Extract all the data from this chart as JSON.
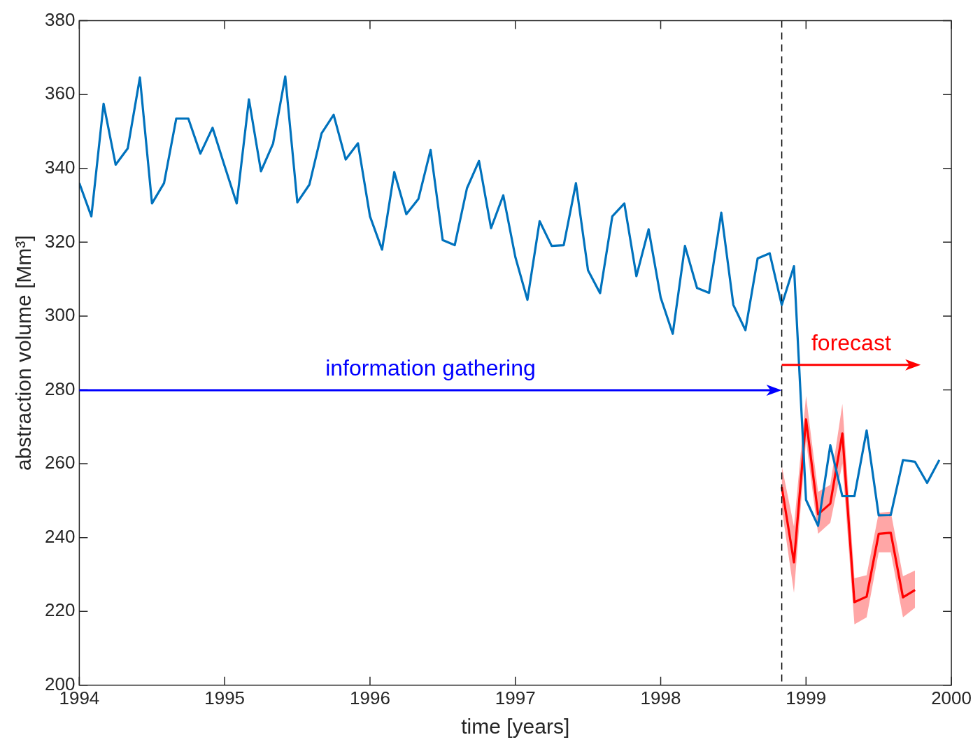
{
  "chart_data": {
    "type": "line",
    "xlabel": "time [years]",
    "ylabel": "abstraction volume [Mm³]",
    "xlim": [
      1994,
      2000
    ],
    "xticks": [
      1994,
      1995,
      1996,
      1997,
      1998,
      1999,
      2000
    ],
    "ylim": [
      200,
      380
    ],
    "yticks": [
      200,
      220,
      240,
      260,
      280,
      300,
      320,
      340,
      360,
      380
    ],
    "grid": false,
    "legend": false,
    "marker": "none",
    "line_style": "solid",
    "series": [
      {
        "color": "#0072bd",
        "x": [
          1994,
          1994.083,
          1994.167,
          1994.25,
          1994.333,
          1994.417,
          1994.5,
          1994.583,
          1994.667,
          1994.75,
          1994.833,
          1994.917,
          1995,
          1995.083,
          1995.167,
          1995.25,
          1995.333,
          1995.417,
          1995.5,
          1995.583,
          1995.667,
          1995.75,
          1995.833,
          1995.917,
          1996,
          1996.083,
          1996.167,
          1996.25,
          1996.333,
          1996.417,
          1996.5,
          1996.583,
          1996.667,
          1996.75,
          1996.833,
          1996.917,
          1997,
          1997.083,
          1997.167,
          1997.25,
          1997.333,
          1997.417,
          1997.5,
          1997.583,
          1997.667,
          1997.75,
          1997.833,
          1997.917,
          1998,
          1998.083,
          1998.167,
          1998.25,
          1998.333,
          1998.417,
          1998.5,
          1998.583,
          1998.667,
          1998.75,
          1998.833,
          1998.917,
          1999,
          1999.083,
          1999.167,
          1999.25,
          1999.333,
          1999.417,
          1999.5,
          1999.583,
          1999.667,
          1999.75,
          1999.833,
          1999.917
        ],
        "values": [
          336,
          327,
          357.5,
          341,
          345.4,
          364.6,
          330.5,
          336,
          353.5,
          353.5,
          344,
          351,
          340.6,
          330.5,
          358.7,
          339.2,
          346.7,
          364.9,
          330.8,
          335.6,
          349.5,
          354.5,
          342.4,
          346.8,
          327,
          318,
          339,
          327.6,
          331.7,
          345,
          320.6,
          319.2,
          334.6,
          342,
          323.8,
          332.7,
          316,
          304.4,
          325.7,
          319,
          319.2,
          336,
          312.4,
          306.2,
          327,
          330.5,
          310.8,
          323.5,
          305,
          295.2,
          319,
          307.6,
          306.3,
          328,
          303,
          296.2,
          315.6,
          317,
          303,
          313.5,
          250.2,
          243.2,
          265,
          251.2,
          251.2,
          269,
          246,
          246.1,
          261,
          260.5,
          254.8,
          261
        ]
      },
      {
        "color": "#ff0000",
        "x": [
          1998.833,
          1998.917,
          1999,
          1999.083,
          1999.167,
          1999.25,
          1999.333,
          1999.417,
          1999.5,
          1999.583,
          1999.667,
          1999.75
        ],
        "values": [
          253.7,
          233.3,
          272,
          246.3,
          249.2,
          268.2,
          222.5,
          224,
          241,
          241.3,
          223.8,
          225.8
        ],
        "lower": [
          248,
          225,
          266.3,
          241,
          244,
          260,
          216.5,
          218.4,
          236,
          236,
          218.4,
          221
        ],
        "upper": [
          259.4,
          243,
          278.4,
          252.4,
          254.3,
          276.2,
          229,
          229.8,
          246.7,
          247,
          229.5,
          231.1
        ]
      }
    ],
    "ref_lines": [
      {
        "axis": "x",
        "value": 1998.833,
        "color": "#000000",
        "line_style": "dashed"
      }
    ],
    "annotations": [
      "information gathering",
      "forecast"
    ]
  }
}
